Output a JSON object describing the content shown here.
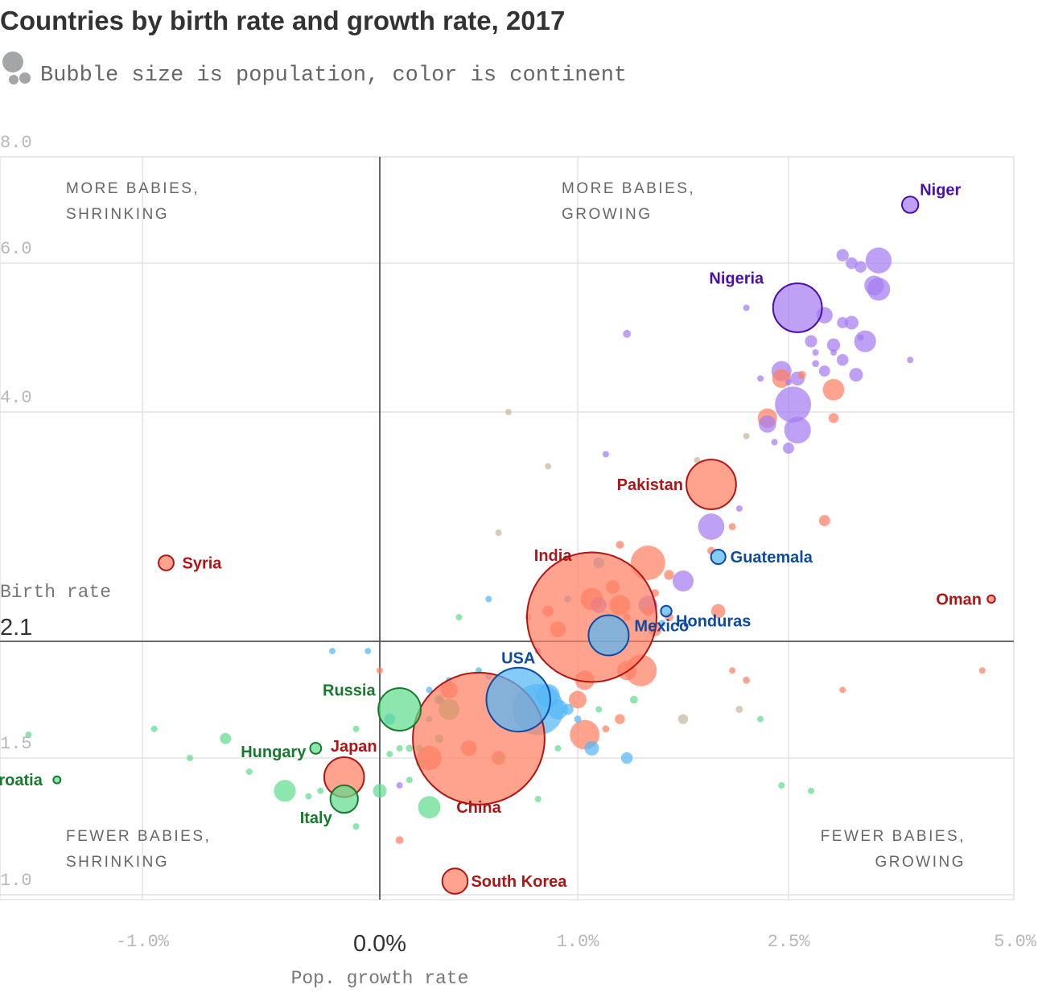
{
  "title": "Countries by birth rate and growth rate, 2017",
  "subtitle": "Bubble size is population, color is continent",
  "colors": {
    "asia": "#ff7f62",
    "asia_stroke": "#b01515",
    "africa": "#a57cf0",
    "africa_stroke": "#4a0fa8",
    "americas": "#56b7f5",
    "americas_stroke": "#0d4aa0",
    "europe": "#5fdc8e",
    "europe_stroke": "#157a2c",
    "oceania": "#c8b99a",
    "grid": "#dddddd",
    "axis": "#555555"
  },
  "chart_data": {
    "type": "scatter",
    "title": "Countries by birth rate and growth rate, 2017",
    "subtitle": "Bubble size is population, color is continent",
    "xlabel": "Pop. growth rate",
    "ylabel": "Birth rate",
    "x_scale": "piecewise",
    "x_ticks": [
      {
        "value": -1.0,
        "label": "-1.0%"
      },
      {
        "value": 0.0,
        "label": "0.0%"
      },
      {
        "value": 1.0,
        "label": "1.0%"
      },
      {
        "value": 2.5,
        "label": "2.5%"
      },
      {
        "value": 5.0,
        "label": "5.0%"
      }
    ],
    "y_ticks": [
      {
        "value": 8.0,
        "label": "8.0"
      },
      {
        "value": 6.0,
        "label": "6.0"
      },
      {
        "value": 4.0,
        "label": "4.0"
      },
      {
        "value": 2.1,
        "label": "2.1"
      },
      {
        "value": 1.5,
        "label": "1.5"
      },
      {
        "value": 1.0,
        "label": "1.0"
      }
    ],
    "reference_lines": {
      "x": 0.0,
      "y": 2.1
    },
    "grid": true,
    "quadrants": [
      {
        "line1": "MORE BABIES,",
        "line2": "SHRINKING"
      },
      {
        "line1": "MORE BABIES,",
        "line2": "GROWING"
      },
      {
        "line1": "FEWER BABIES,",
        "line2": "SHRINKING"
      },
      {
        "line1": "FEWER BABIES,",
        "line2": "GROWING"
      }
    ],
    "labeled_points": [
      {
        "name": "Niger",
        "x": 3.85,
        "y": 7.1,
        "pop": 21.5,
        "continent": "africa"
      },
      {
        "name": "Nigeria",
        "x": 2.6,
        "y": 5.4,
        "pop": 191,
        "continent": "africa"
      },
      {
        "name": "Pakistan",
        "x": 1.95,
        "y": 3.4,
        "pop": 197,
        "continent": "asia"
      },
      {
        "name": "Guatemala",
        "x": 2.0,
        "y": 2.8,
        "pop": 16.9,
        "continent": "americas"
      },
      {
        "name": "Syria",
        "x": -0.9,
        "y": 2.75,
        "pop": 18.3,
        "continent": "asia"
      },
      {
        "name": "India",
        "x": 1.1,
        "y": 2.3,
        "pop": 1339,
        "continent": "asia"
      },
      {
        "name": "Oman",
        "x": 4.75,
        "y": 2.45,
        "pop": 4.6,
        "continent": "asia"
      },
      {
        "name": "Honduras",
        "x": 1.63,
        "y": 2.35,
        "pop": 9.3,
        "continent": "americas"
      },
      {
        "name": "Mexico",
        "x": 1.22,
        "y": 2.15,
        "pop": 129,
        "continent": "americas"
      },
      {
        "name": "USA",
        "x": 0.7,
        "y": 1.8,
        "pop": 326,
        "continent": "americas"
      },
      {
        "name": "China",
        "x": 0.5,
        "y": 1.6,
        "pop": 1386,
        "continent": "asia"
      },
      {
        "name": "Russia",
        "x": 0.1,
        "y": 1.75,
        "pop": 144,
        "continent": "europe"
      },
      {
        "name": "Hungary",
        "x": -0.27,
        "y": 1.55,
        "pop": 9.8,
        "continent": "europe"
      },
      {
        "name": "Japan",
        "x": -0.15,
        "y": 1.43,
        "pop": 127,
        "continent": "asia"
      },
      {
        "name": "Italy",
        "x": -0.15,
        "y": 1.35,
        "pop": 60.6,
        "continent": "europe"
      },
      {
        "name": "Croatia",
        "x": -1.15,
        "y": 1.42,
        "pop": 4.1,
        "continent": "europe"
      },
      {
        "name": "South Korea",
        "x": 0.38,
        "y": 1.05,
        "pop": 51.5,
        "continent": "asia"
      }
    ],
    "other_points": [
      {
        "x": 3.1,
        "y": 6.15,
        "pop": 12,
        "continent": "africa"
      },
      {
        "x": 3.5,
        "y": 6.05,
        "pop": 54,
        "continent": "africa"
      },
      {
        "x": 3.2,
        "y": 6.0,
        "pop": 11,
        "continent": "africa"
      },
      {
        "x": 3.3,
        "y": 5.95,
        "pop": 11,
        "continent": "africa"
      },
      {
        "x": 3.45,
        "y": 5.7,
        "pop": 31,
        "continent": "africa"
      },
      {
        "x": 3.5,
        "y": 5.65,
        "pop": 42,
        "continent": "africa"
      },
      {
        "x": 2.9,
        "y": 5.3,
        "pop": 21,
        "continent": "africa"
      },
      {
        "x": 3.2,
        "y": 5.2,
        "pop": 15,
        "continent": "africa"
      },
      {
        "x": 3.1,
        "y": 5.2,
        "pop": 10,
        "continent": "africa"
      },
      {
        "x": 3.3,
        "y": 5.0,
        "pop": 2.5,
        "continent": "africa"
      },
      {
        "x": 3.35,
        "y": 4.95,
        "pop": 38,
        "continent": "africa"
      },
      {
        "x": 3.0,
        "y": 4.9,
        "pop": 14,
        "continent": "africa"
      },
      {
        "x": 2.75,
        "y": 4.95,
        "pop": 12,
        "continent": "africa"
      },
      {
        "x": 2.8,
        "y": 4.8,
        "pop": 3,
        "continent": "africa"
      },
      {
        "x": 3.1,
        "y": 4.7,
        "pop": 11,
        "continent": "africa"
      },
      {
        "x": 3.0,
        "y": 4.8,
        "pop": 3,
        "continent": "africa"
      },
      {
        "x": 2.8,
        "y": 4.65,
        "pop": 4,
        "continent": "africa"
      },
      {
        "x": 2.9,
        "y": 4.55,
        "pop": 10,
        "continent": "africa"
      },
      {
        "x": 3.25,
        "y": 4.5,
        "pop": 15,
        "continent": "africa"
      },
      {
        "x": 2.45,
        "y": 4.55,
        "pop": 32,
        "continent": "africa"
      },
      {
        "x": 2.6,
        "y": 4.45,
        "pop": 16,
        "continent": "africa"
      },
      {
        "x": 2.5,
        "y": 4.4,
        "pop": 2,
        "continent": "africa"
      },
      {
        "x": 2.55,
        "y": 4.1,
        "pop": 104,
        "continent": "africa"
      },
      {
        "x": 2.35,
        "y": 3.9,
        "pop": 24,
        "continent": "africa"
      },
      {
        "x": 2.6,
        "y": 3.85,
        "pop": 57,
        "continent": "africa"
      },
      {
        "x": 2.4,
        "y": 3.75,
        "pop": 2,
        "continent": "africa"
      },
      {
        "x": 2.5,
        "y": 3.7,
        "pop": 10,
        "continent": "africa"
      },
      {
        "x": 2.3,
        "y": 4.45,
        "pop": 2,
        "continent": "africa"
      },
      {
        "x": 1.95,
        "y": 3.05,
        "pop": 55,
        "continent": "africa"
      },
      {
        "x": 2.15,
        "y": 3.2,
        "pop": 2,
        "continent": "africa"
      },
      {
        "x": 1.75,
        "y": 2.6,
        "pop": 35,
        "continent": "africa"
      },
      {
        "x": 1.35,
        "y": 5.05,
        "pop": 5,
        "continent": "africa"
      },
      {
        "x": 3.85,
        "y": 4.7,
        "pop": 2,
        "continent": "africa"
      },
      {
        "x": 2.2,
        "y": 5.4,
        "pop": 2,
        "continent": "africa"
      },
      {
        "x": 1.2,
        "y": 3.65,
        "pop": 1,
        "continent": "africa"
      },
      {
        "x": 1.5,
        "y": 2.4,
        "pop": 28,
        "continent": "africa"
      },
      {
        "x": 1.15,
        "y": 2.4,
        "pop": 20,
        "continent": "africa"
      },
      {
        "x": 0.8,
        "y": 2.05,
        "pop": 2,
        "continent": "africa"
      },
      {
        "x": 0.1,
        "y": 1.4,
        "pop": 2,
        "continent": "africa"
      },
      {
        "x": 2.65,
        "y": 4.5,
        "pop": 5,
        "continent": "asia"
      },
      {
        "x": 2.45,
        "y": 4.45,
        "pop": 28,
        "continent": "asia"
      },
      {
        "x": 3.0,
        "y": 4.3,
        "pop": 37,
        "continent": "asia"
      },
      {
        "x": 2.35,
        "y": 3.95,
        "pop": 30,
        "continent": "asia"
      },
      {
        "x": 3.0,
        "y": 3.95,
        "pop": 8,
        "continent": "asia"
      },
      {
        "x": 2.9,
        "y": 3.1,
        "pop": 10,
        "continent": "asia"
      },
      {
        "x": 2.1,
        "y": 3.05,
        "pop": 4,
        "continent": "asia"
      },
      {
        "x": 1.95,
        "y": 2.85,
        "pop": 5,
        "continent": "asia"
      },
      {
        "x": 1.5,
        "y": 2.75,
        "pop": 95,
        "continent": "asia"
      },
      {
        "x": 1.3,
        "y": 2.9,
        "pop": 5,
        "continent": "asia"
      },
      {
        "x": 1.65,
        "y": 2.65,
        "pop": 8,
        "continent": "asia"
      },
      {
        "x": 1.25,
        "y": 2.55,
        "pop": 15,
        "continent": "asia"
      },
      {
        "x": 1.55,
        "y": 2.5,
        "pop": 5,
        "continent": "asia"
      },
      {
        "x": 1.5,
        "y": 2.35,
        "pop": 8,
        "continent": "asia"
      },
      {
        "x": 1.65,
        "y": 2.3,
        "pop": 6,
        "continent": "asia"
      },
      {
        "x": 2.0,
        "y": 2.35,
        "pop": 16,
        "continent": "asia"
      },
      {
        "x": 1.35,
        "y": 2.3,
        "pop": 4,
        "continent": "asia"
      },
      {
        "x": 1.3,
        "y": 2.4,
        "pop": 33,
        "continent": "asia"
      },
      {
        "x": 1.1,
        "y": 2.45,
        "pop": 40,
        "continent": "asia"
      },
      {
        "x": 1.45,
        "y": 1.95,
        "pop": 80,
        "continent": "asia"
      },
      {
        "x": 1.35,
        "y": 1.95,
        "pop": 30,
        "continent": "asia"
      },
      {
        "x": 1.05,
        "y": 1.9,
        "pop": 30,
        "continent": "asia"
      },
      {
        "x": 1.0,
        "y": 1.8,
        "pop": 25,
        "continent": "asia"
      },
      {
        "x": 1.05,
        "y": 1.62,
        "pop": 70,
        "continent": "asia"
      },
      {
        "x": 0.35,
        "y": 1.85,
        "pop": 23,
        "continent": "asia"
      },
      {
        "x": 1.2,
        "y": 1.65,
        "pop": 4,
        "continent": "asia"
      },
      {
        "x": 1.3,
        "y": 1.7,
        "pop": 8,
        "continent": "asia"
      },
      {
        "x": 0.25,
        "y": 1.5,
        "pop": 48,
        "continent": "asia"
      },
      {
        "x": 0.1,
        "y": 1.2,
        "pop": 5,
        "continent": "asia"
      },
      {
        "x": 0.0,
        "y": 1.95,
        "pop": 3,
        "continent": "asia"
      },
      {
        "x": 2.2,
        "y": 1.9,
        "pop": 4,
        "continent": "asia"
      },
      {
        "x": 2.1,
        "y": 1.95,
        "pop": 2,
        "continent": "asia"
      },
      {
        "x": 3.1,
        "y": 1.85,
        "pop": 3,
        "continent": "asia"
      },
      {
        "x": 4.65,
        "y": 1.95,
        "pop": 3,
        "continent": "asia"
      },
      {
        "x": 0.45,
        "y": 1.55,
        "pop": 20,
        "continent": "asia"
      },
      {
        "x": 0.6,
        "y": 1.5,
        "pop": 15,
        "continent": "asia"
      },
      {
        "x": 0.9,
        "y": 2.2,
        "pop": 20,
        "continent": "asia"
      },
      {
        "x": 1.55,
        "y": 2.2,
        "pop": 15,
        "continent": "asia"
      },
      {
        "x": 0.85,
        "y": 2.35,
        "pop": 10,
        "continent": "asia"
      },
      {
        "x": 1.15,
        "y": 2.75,
        "pop": 10,
        "continent": "americas"
      },
      {
        "x": 0.95,
        "y": 2.45,
        "pop": 4,
        "continent": "americas"
      },
      {
        "x": 0.55,
        "y": 2.45,
        "pop": 2,
        "continent": "americas"
      },
      {
        "x": 1.6,
        "y": 2.25,
        "pop": 4,
        "continent": "americas"
      },
      {
        "x": 0.8,
        "y": 1.75,
        "pop": 210,
        "continent": "americas"
      },
      {
        "x": 0.85,
        "y": 1.82,
        "pop": 44,
        "continent": "americas"
      },
      {
        "x": 0.9,
        "y": 1.75,
        "pop": 32,
        "continent": "americas"
      },
      {
        "x": 0.95,
        "y": 1.75,
        "pop": 10,
        "continent": "americas"
      },
      {
        "x": 1.1,
        "y": 1.55,
        "pop": 17,
        "continent": "americas"
      },
      {
        "x": 1.35,
        "y": 1.5,
        "pop": 11,
        "continent": "americas"
      },
      {
        "x": 1.0,
        "y": 1.7,
        "pop": 4,
        "continent": "americas"
      },
      {
        "x": 0.5,
        "y": 1.95,
        "pop": 2,
        "continent": "americas"
      },
      {
        "x": 0.55,
        "y": 1.92,
        "pop": 2,
        "continent": "americas"
      },
      {
        "x": 0.25,
        "y": 1.85,
        "pop": 2,
        "continent": "americas"
      },
      {
        "x": 0.3,
        "y": 1.8,
        "pop": 2,
        "continent": "americas"
      },
      {
        "x": -0.2,
        "y": 2.05,
        "pop": 1,
        "continent": "americas"
      },
      {
        "x": -0.05,
        "y": 2.05,
        "pop": 1,
        "continent": "americas"
      },
      {
        "x": 0.35,
        "y": 1.9,
        "pop": 2,
        "continent": "americas"
      },
      {
        "x": 0.05,
        "y": 1.7,
        "pop": 10,
        "continent": "americas"
      },
      {
        "x": 0.35,
        "y": 1.75,
        "pop": 35,
        "continent": "europe"
      },
      {
        "x": 0.3,
        "y": 1.8,
        "pop": 8,
        "continent": "europe"
      },
      {
        "x": 0.25,
        "y": 1.7,
        "pop": 2,
        "continent": "europe"
      },
      {
        "x": 0.3,
        "y": 1.6,
        "pop": 6,
        "continent": "europe"
      },
      {
        "x": 0.2,
        "y": 1.55,
        "pop": 4,
        "continent": "europe"
      },
      {
        "x": 0.15,
        "y": 1.55,
        "pop": 4,
        "continent": "europe"
      },
      {
        "x": 0.1,
        "y": 1.55,
        "pop": 2,
        "continent": "europe"
      },
      {
        "x": 0.05,
        "y": 1.52,
        "pop": 2,
        "continent": "europe"
      },
      {
        "x": 0.2,
        "y": 1.48,
        "pop": 3,
        "continent": "europe"
      },
      {
        "x": 0.15,
        "y": 1.42,
        "pop": 3,
        "continent": "europe"
      },
      {
        "x": 0.0,
        "y": 1.38,
        "pop": 15,
        "continent": "europe"
      },
      {
        "x": 0.25,
        "y": 1.32,
        "pop": 40,
        "continent": "europe"
      },
      {
        "x": -0.4,
        "y": 1.38,
        "pop": 38,
        "continent": "europe"
      },
      {
        "x": -0.55,
        "y": 1.45,
        "pop": 3,
        "continent": "europe"
      },
      {
        "x": -0.65,
        "y": 1.6,
        "pop": 10,
        "continent": "europe"
      },
      {
        "x": -0.8,
        "y": 1.5,
        "pop": 3,
        "continent": "europe"
      },
      {
        "x": -0.95,
        "y": 1.65,
        "pop": 2,
        "continent": "europe"
      },
      {
        "x": -1.2,
        "y": 1.62,
        "pop": 2,
        "continent": "europe"
      },
      {
        "x": -0.25,
        "y": 1.38,
        "pop": 3,
        "continent": "europe"
      },
      {
        "x": -0.3,
        "y": 1.36,
        "pop": 2,
        "continent": "europe"
      },
      {
        "x": -0.1,
        "y": 1.25,
        "pop": 2,
        "continent": "europe"
      },
      {
        "x": -0.1,
        "y": 1.65,
        "pop": 2,
        "continent": "europe"
      },
      {
        "x": 0.6,
        "y": 1.5,
        "pop": 2,
        "continent": "europe"
      },
      {
        "x": 0.9,
        "y": 1.55,
        "pop": 3,
        "continent": "europe"
      },
      {
        "x": 0.8,
        "y": 1.35,
        "pop": 2,
        "continent": "europe"
      },
      {
        "x": 1.15,
        "y": 1.75,
        "pop": 3,
        "continent": "europe"
      },
      {
        "x": 1.4,
        "y": 1.8,
        "pop": 5,
        "continent": "europe"
      },
      {
        "x": 2.3,
        "y": 1.7,
        "pop": 1,
        "continent": "europe"
      },
      {
        "x": 2.45,
        "y": 1.4,
        "pop": 1,
        "continent": "europe"
      },
      {
        "x": 2.75,
        "y": 1.38,
        "pop": 1,
        "continent": "europe"
      },
      {
        "x": 0.4,
        "y": 2.3,
        "pop": 1,
        "continent": "europe"
      },
      {
        "x": 1.75,
        "y": 1.7,
        "pop": 8,
        "continent": "oceania"
      },
      {
        "x": 2.15,
        "y": 1.75,
        "pop": 4,
        "continent": "oceania"
      },
      {
        "x": 0.75,
        "y": 2.3,
        "pop": 3,
        "continent": "oceania"
      },
      {
        "x": 0.65,
        "y": 4.0,
        "pop": 1,
        "continent": "oceania"
      },
      {
        "x": 0.85,
        "y": 3.55,
        "pop": 1,
        "continent": "oceania"
      },
      {
        "x": 0.6,
        "y": 3.0,
        "pop": 1,
        "continent": "oceania"
      },
      {
        "x": 1.85,
        "y": 3.6,
        "pop": 1,
        "continent": "oceania"
      },
      {
        "x": 2.2,
        "y": 3.8,
        "pop": 1,
        "continent": "oceania"
      }
    ]
  }
}
